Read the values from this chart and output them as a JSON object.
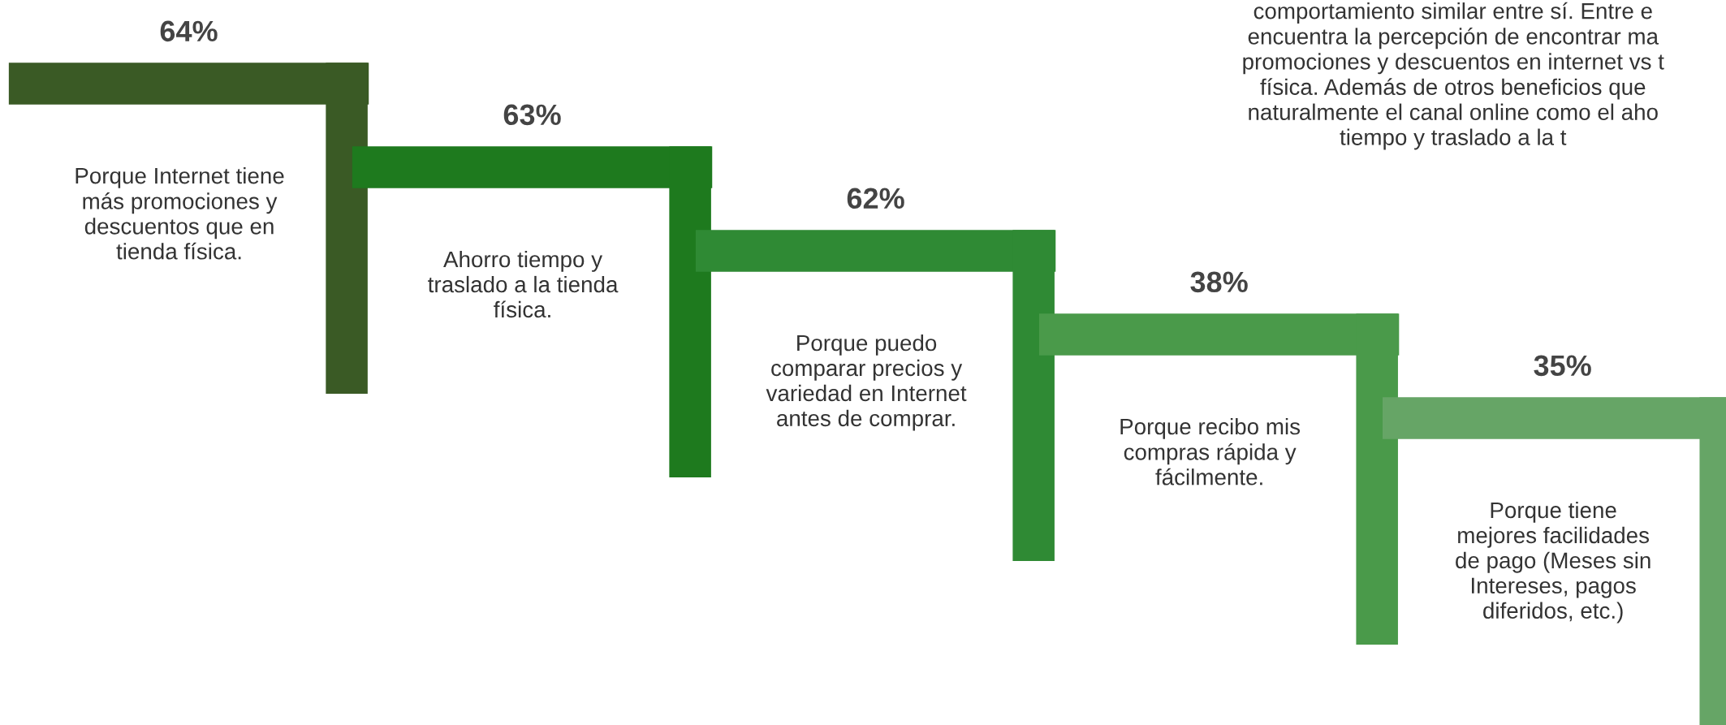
{
  "chart_data": {
    "type": "other",
    "categories": [
      "Porque Internet tiene\nmás promociones y\ndescuentos que en\ntienda física.",
      "Ahorro tiempo y\ntraslado a la tienda\nfísica.",
      "Porque puedo\ncomparar precios y\nvariedad en Internet\nantes de comprar.",
      "Porque recibo mis\ncompras rápida y\nfácilmente.",
      "Porque tiene\nmejores facilidades\nde pago (Meses sin\nIntereses, pagos\ndiferidos, etc.)"
    ],
    "values": [
      64,
      63,
      62,
      38,
      35
    ],
    "value_labels": [
      "64%",
      "63%",
      "62%",
      "38%",
      "35%"
    ],
    "colors": [
      "#3a5a25",
      "#1e7a1e",
      "#2f8a34",
      "#4a9a4a",
      "#66a566"
    ],
    "annotations": [
      "comportamiento similar entre sí. Entre e\nencuentra la percepción de encontrar ma\npromociones y descuentos en internet vs t\nfísica. Además de otros beneficios que\nnaturalmente el canal online como el aho\ntiempo y traslado a la t"
    ]
  }
}
